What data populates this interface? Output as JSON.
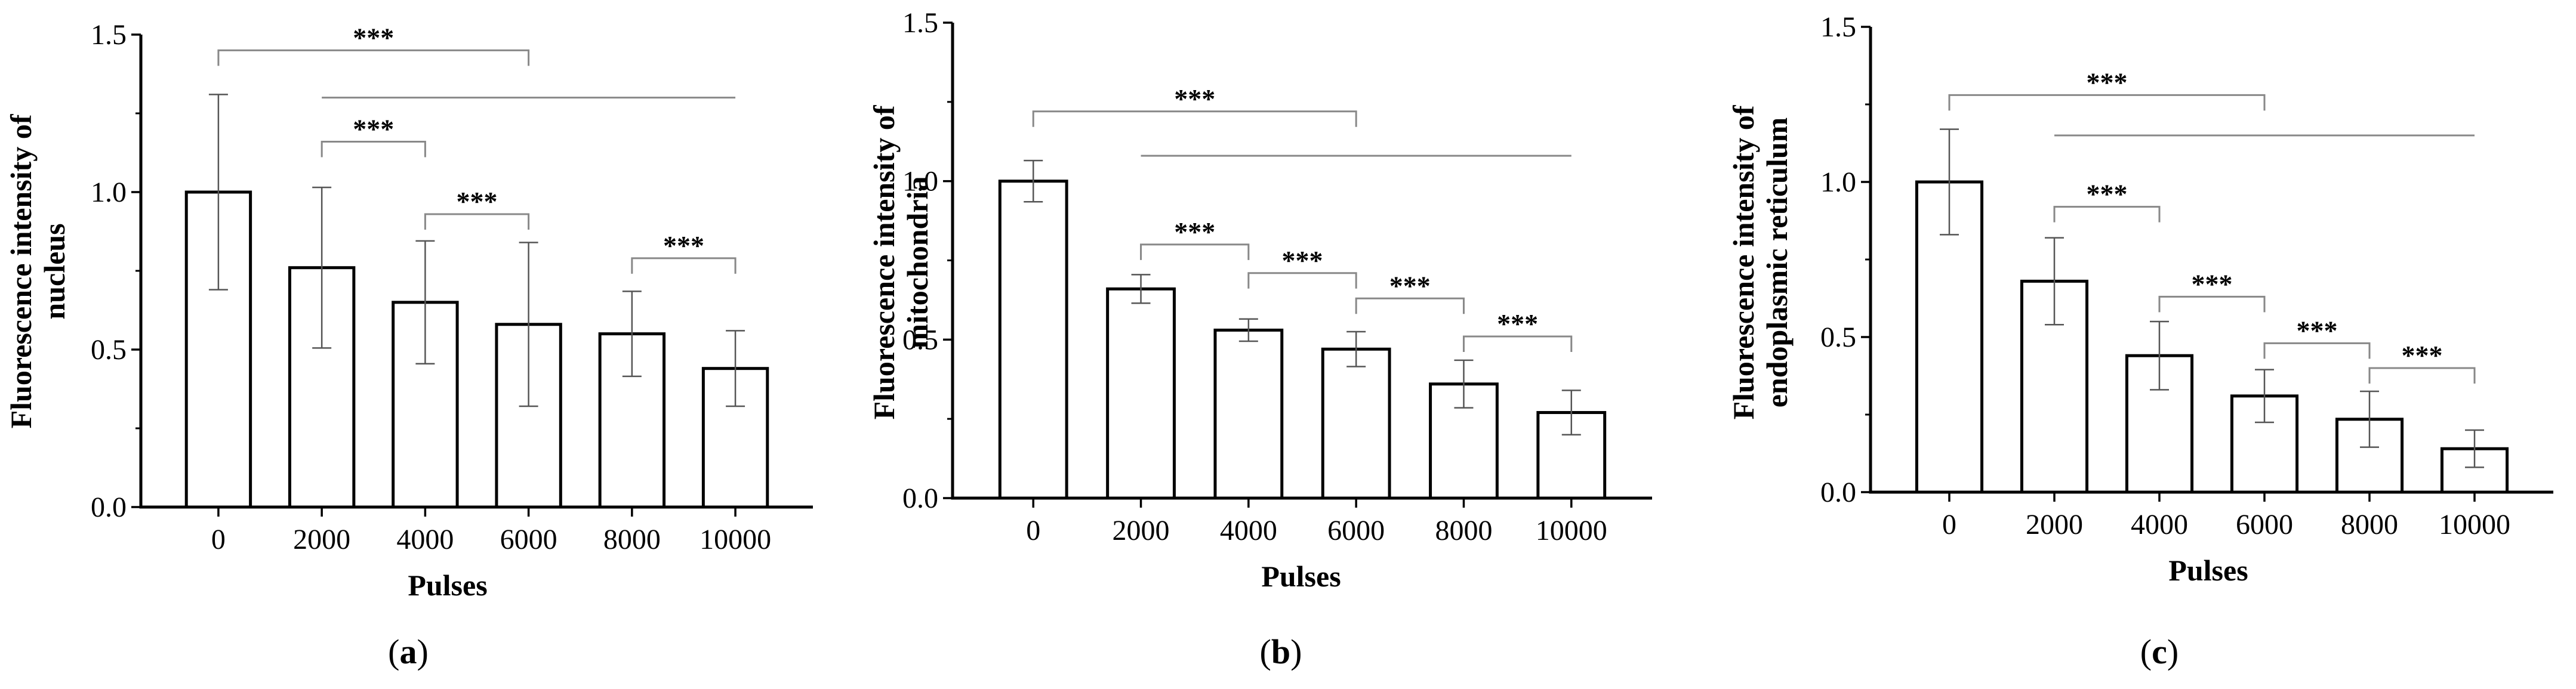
{
  "figure": {
    "panels": [
      {
        "letter": "a",
        "open": "(",
        "close": ")"
      },
      {
        "letter": "b",
        "open": "(",
        "close": ")"
      },
      {
        "letter": "c",
        "open": "(",
        "close": ")"
      }
    ]
  },
  "chart_data": [
    {
      "type": "bar",
      "panel_label": "(a)",
      "title": "",
      "xlabel": "Pulses",
      "ylabel": "Fluorescence intensity of nucleus",
      "ylabel_lines": [
        "Fluorescence intensity of",
        "nucleus"
      ],
      "categories": [
        "0",
        "2000",
        "4000",
        "6000",
        "8000",
        "10000"
      ],
      "values": [
        1.0,
        0.76,
        0.65,
        0.58,
        0.55,
        0.44
      ],
      "errors": [
        0.31,
        0.255,
        0.195,
        0.26,
        0.135,
        0.12
      ],
      "ylim": [
        0,
        1.5
      ],
      "yticks": [
        "0.0",
        "0.5",
        "1.0",
        "1.5"
      ],
      "ytick_values": [
        0,
        0.5,
        1.0,
        1.5
      ],
      "significance": [
        {
          "from": 0,
          "to": 3,
          "y": 1.45,
          "label": "***",
          "style": "bracket"
        },
        {
          "from": 1,
          "to": 5,
          "y": 1.3,
          "label": "",
          "style": "line"
        },
        {
          "from": 1,
          "to": 2,
          "y": 1.16,
          "label": "***",
          "style": "bracket"
        },
        {
          "from": 2,
          "to": 3,
          "y": 0.93,
          "label": "***",
          "style": "bracket"
        },
        {
          "from": 4,
          "to": 5,
          "y": 0.79,
          "label": "***",
          "style": "bracket"
        }
      ]
    },
    {
      "type": "bar",
      "panel_label": "(b)",
      "title": "",
      "xlabel": "Pulses",
      "ylabel": "Fluorescence intensity of mitochondria",
      "ylabel_lines": [
        "Fluorescence intensity of",
        "mitochondria"
      ],
      "categories": [
        "0",
        "2000",
        "4000",
        "6000",
        "8000",
        "10000"
      ],
      "values": [
        1.0,
        0.66,
        0.53,
        0.47,
        0.36,
        0.27
      ],
      "errors": [
        0.065,
        0.045,
        0.035,
        0.055,
        0.075,
        0.07
      ],
      "ylim": [
        0,
        1.5
      ],
      "yticks": [
        "0.0",
        "0.5",
        "1.0",
        "1.5"
      ],
      "ytick_values": [
        0,
        0.5,
        1.0,
        1.5
      ],
      "significance": [
        {
          "from": 0,
          "to": 3,
          "y": 1.22,
          "label": "***",
          "style": "bracket"
        },
        {
          "from": 1,
          "to": 5,
          "y": 1.08,
          "label": "",
          "style": "line"
        },
        {
          "from": 1,
          "to": 2,
          "y": 0.8,
          "label": "***",
          "style": "bracket"
        },
        {
          "from": 2,
          "to": 3,
          "y": 0.71,
          "label": "***",
          "style": "bracket"
        },
        {
          "from": 3,
          "to": 4,
          "y": 0.63,
          "label": "***",
          "style": "bracket"
        },
        {
          "from": 4,
          "to": 5,
          "y": 0.51,
          "label": "***",
          "style": "bracket"
        }
      ]
    },
    {
      "type": "bar",
      "panel_label": "(c)",
      "title": "",
      "xlabel": "Pulses",
      "ylabel": "Fluorescence intensity of endoplasmic reticulum",
      "ylabel_lines": [
        "Fluorescence intensity of",
        "endoplasmic  reticulum"
      ],
      "categories": [
        "0",
        "2000",
        "4000",
        "6000",
        "8000",
        "10000"
      ],
      "values": [
        1.0,
        0.68,
        0.44,
        0.31,
        0.235,
        0.14
      ],
      "errors": [
        0.17,
        0.14,
        0.11,
        0.085,
        0.09,
        0.06
      ],
      "ylim": [
        0,
        1.5
      ],
      "yticks": [
        "0.0",
        "0.5",
        "1.0",
        "1.5"
      ],
      "ytick_values": [
        0,
        0.5,
        1.0,
        1.5
      ],
      "significance": [
        {
          "from": 0,
          "to": 3,
          "y": 1.28,
          "label": "***",
          "style": "bracket"
        },
        {
          "from": 1,
          "to": 5,
          "y": 1.15,
          "label": "",
          "style": "line"
        },
        {
          "from": 1,
          "to": 2,
          "y": 0.92,
          "label": "***",
          "style": "bracket"
        },
        {
          "from": 2,
          "to": 3,
          "y": 0.63,
          "label": "***",
          "style": "bracket"
        },
        {
          "from": 3,
          "to": 4,
          "y": 0.48,
          "label": "***",
          "style": "bracket"
        },
        {
          "from": 4,
          "to": 5,
          "y": 0.4,
          "label": "***",
          "style": "bracket"
        }
      ]
    }
  ]
}
